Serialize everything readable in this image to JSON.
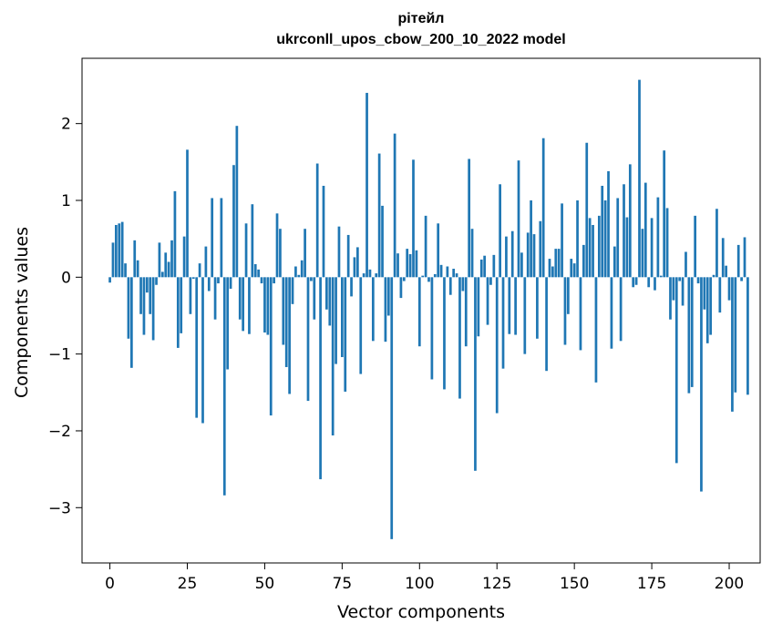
{
  "chart_data": {
    "type": "bar",
    "title": [
      "рітейл",
      "ukrconll_upos_cbow_200_10_2022 model"
    ],
    "xlabel": "Vector components",
    "ylabel": "Components values",
    "xlim": [
      -9,
      210
    ],
    "ylim": [
      -3.72,
      2.85
    ],
    "xticks": [
      0,
      25,
      50,
      75,
      100,
      125,
      150,
      175,
      200
    ],
    "yticks": [
      -3,
      -2,
      -1,
      0,
      1,
      2
    ],
    "bar_color": "#1f77b4",
    "grid": false,
    "values": [
      -0.07,
      0.45,
      0.68,
      0.7,
      0.72,
      0.18,
      -0.8,
      -1.18,
      0.48,
      0.22,
      -0.48,
      -0.75,
      -0.2,
      -0.48,
      -0.82,
      -0.1,
      0.45,
      0.07,
      0.32,
      0.2,
      0.48,
      1.12,
      -0.92,
      -0.73,
      0.53,
      1.66,
      -0.48,
      -0.02,
      -1.83,
      0.18,
      -1.9,
      0.4,
      -0.18,
      1.03,
      -0.55,
      -0.08,
      1.03,
      -2.84,
      -1.2,
      -0.15,
      1.46,
      1.97,
      -0.55,
      -0.7,
      0.7,
      -0.74,
      0.95,
      0.17,
      0.1,
      -0.08,
      -0.72,
      -0.75,
      -1.8,
      -0.08,
      0.83,
      0.63,
      -0.88,
      -1.17,
      -1.52,
      -0.35,
      0.14,
      0.03,
      0.22,
      0.63,
      -1.61,
      -0.05,
      -0.55,
      1.48,
      -2.63,
      1.19,
      -0.42,
      -0.63,
      -2.06,
      -1.13,
      0.66,
      -1.04,
      -1.49,
      0.55,
      -0.25,
      0.26,
      0.39,
      -1.26,
      0.05,
      2.4,
      0.1,
      -0.83,
      0.05,
      1.61,
      0.93,
      -0.84,
      -0.5,
      -3.41,
      1.87,
      0.31,
      -0.27,
      -0.05,
      0.37,
      0.3,
      1.53,
      0.35,
      -0.9,
      0.02,
      0.8,
      -0.06,
      -1.33,
      0.04,
      0.7,
      0.16,
      -1.46,
      0.14,
      -0.23,
      0.11,
      0.05,
      -1.58,
      -0.18,
      -0.9,
      1.54,
      0.63,
      -2.52,
      -0.77,
      0.23,
      0.28,
      -0.62,
      -0.1,
      0.29,
      -1.77,
      1.21,
      -1.19,
      0.53,
      -0.74,
      0.6,
      -0.75,
      1.52,
      0.32,
      -1.0,
      0.58,
      1.0,
      0.56,
      -0.8,
      0.73,
      1.81,
      -1.22,
      0.24,
      0.14,
      0.37,
      0.37,
      0.96,
      -0.88,
      -0.48,
      0.24,
      0.18,
      1.0,
      -0.95,
      0.42,
      1.75,
      0.77,
      0.68,
      -1.37,
      0.8,
      1.19,
      1.0,
      1.38,
      -0.93,
      0.4,
      1.03,
      -0.83,
      1.21,
      0.78,
      1.47,
      -0.13,
      -0.1,
      2.57,
      0.63,
      1.23,
      -0.13,
      0.77,
      -0.17,
      1.04,
      0.02,
      1.65,
      0.9,
      -0.55,
      -0.3,
      -2.42,
      -0.05,
      -0.37,
      0.33,
      -1.51,
      -1.43,
      0.8,
      -0.08,
      -2.79,
      -0.42,
      -0.86,
      -0.75,
      0.03,
      0.89,
      -0.46,
      0.51,
      0.15,
      -0.3,
      -1.75,
      -1.5,
      0.42,
      -0.05,
      0.52,
      -1.53
    ]
  }
}
